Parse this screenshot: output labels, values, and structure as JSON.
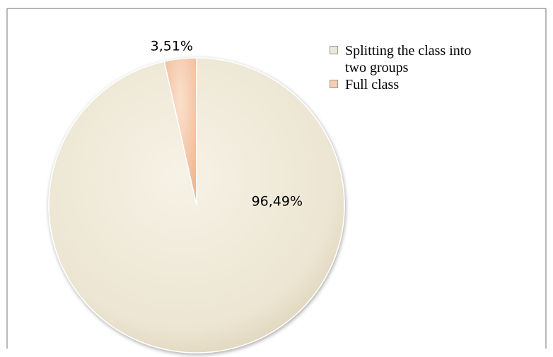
{
  "chart_data": {
    "type": "pie",
    "categories": [
      "Splitting the class into two groups",
      "Full class"
    ],
    "values": [
      96.49,
      3.51
    ],
    "data_labels": [
      "96,49%",
      "3,51%"
    ],
    "colors": [
      "#eee8d8",
      "#f8cdb0"
    ],
    "legend_position": "right",
    "title": ""
  },
  "legend": {
    "items": [
      {
        "label": "Splitting the class into two groups",
        "color": "#eee8d8"
      },
      {
        "label": "Full class",
        "color": "#f8cdb0"
      }
    ]
  }
}
